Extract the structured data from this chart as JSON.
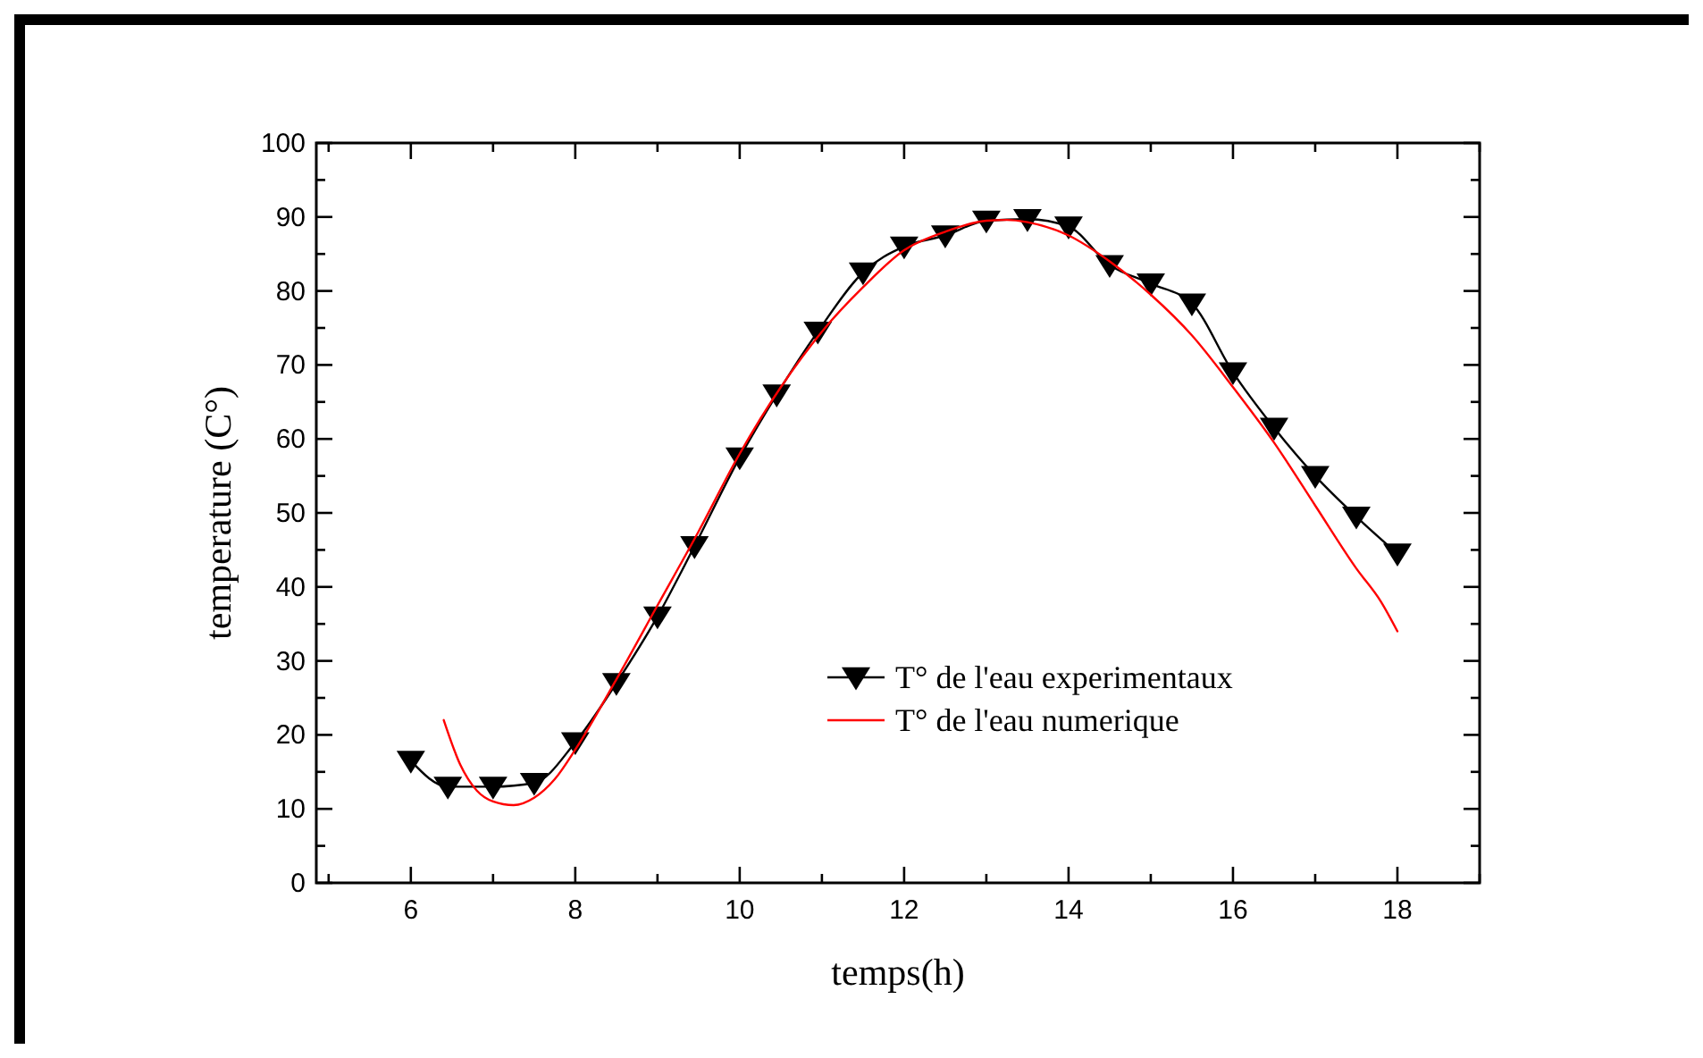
{
  "chart_data": {
    "type": "line",
    "xlabel": "temps(h)",
    "ylabel": "temperature (C°)",
    "xlim": [
      4.85,
      19
    ],
    "xticks": [
      {
        "value": 5,
        "label": null
      },
      6,
      {
        "value": 7,
        "label": null
      },
      8,
      {
        "value": 9,
        "label": null
      },
      10,
      {
        "value": 11,
        "label": null
      },
      12,
      {
        "value": 13,
        "label": null
      },
      14,
      {
        "value": 15,
        "label": null
      },
      16,
      {
        "value": 17,
        "label": null
      },
      18,
      {
        "value": 19,
        "label": null
      }
    ],
    "ylim": [
      0,
      100
    ],
    "yticks": [
      0,
      {
        "value": 5,
        "label": null
      },
      10,
      {
        "value": 15,
        "label": null
      },
      20,
      {
        "value": 25,
        "label": null
      },
      30,
      {
        "value": 35,
        "label": null
      },
      40,
      {
        "value": 45,
        "label": null
      },
      50,
      {
        "value": 55,
        "label": null
      },
      60,
      {
        "value": 65,
        "label": null
      },
      70,
      {
        "value": 75,
        "label": null
      },
      80,
      {
        "value": 85,
        "label": null
      },
      90,
      {
        "value": 95,
        "label": null
      },
      100
    ],
    "grid": false,
    "legend": "bottom right",
    "series": [
      {
        "name": "T° de l'eau experimentaux",
        "color": "#000000",
        "marker": "triangle",
        "x": [
          6,
          6.45,
          7,
          7.5,
          8,
          8.5,
          9,
          9.45,
          10,
          10.45,
          10.95,
          11.5,
          12,
          12.5,
          13,
          13.5,
          14,
          14.5,
          15,
          15.5,
          16,
          16.5,
          17,
          17.5,
          18
        ],
        "values": [
          16.5,
          13,
          13,
          13.5,
          19,
          27,
          36,
          45.5,
          57.5,
          66,
          74.5,
          82.5,
          86,
          87.5,
          89.5,
          89.7,
          88.7,
          83.5,
          81,
          78.3,
          69,
          61.5,
          55,
          49.5,
          44.5
        ]
      },
      {
        "name": "T° de l'eau numerique",
        "color": "#ff0000",
        "marker": "none",
        "x": [
          6.4,
          6.6,
          6.8,
          7,
          7.25,
          7.5,
          7.75,
          8,
          8.5,
          9,
          9.5,
          10,
          10.5,
          11,
          11.5,
          12,
          12.5,
          13,
          13.25,
          13.5,
          14,
          14.5,
          15,
          15.5,
          16,
          16.5,
          17,
          17.5,
          17.8,
          18
        ],
        "values": [
          22,
          16,
          12.5,
          11,
          10.5,
          11.5,
          14,
          18,
          27.5,
          37.5,
          47.5,
          58,
          67,
          74.5,
          80.5,
          85.5,
          88,
          89.5,
          89.6,
          89.3,
          87.5,
          84,
          79.5,
          74,
          67,
          59.5,
          51,
          42.5,
          38,
          34
        ]
      }
    ]
  }
}
